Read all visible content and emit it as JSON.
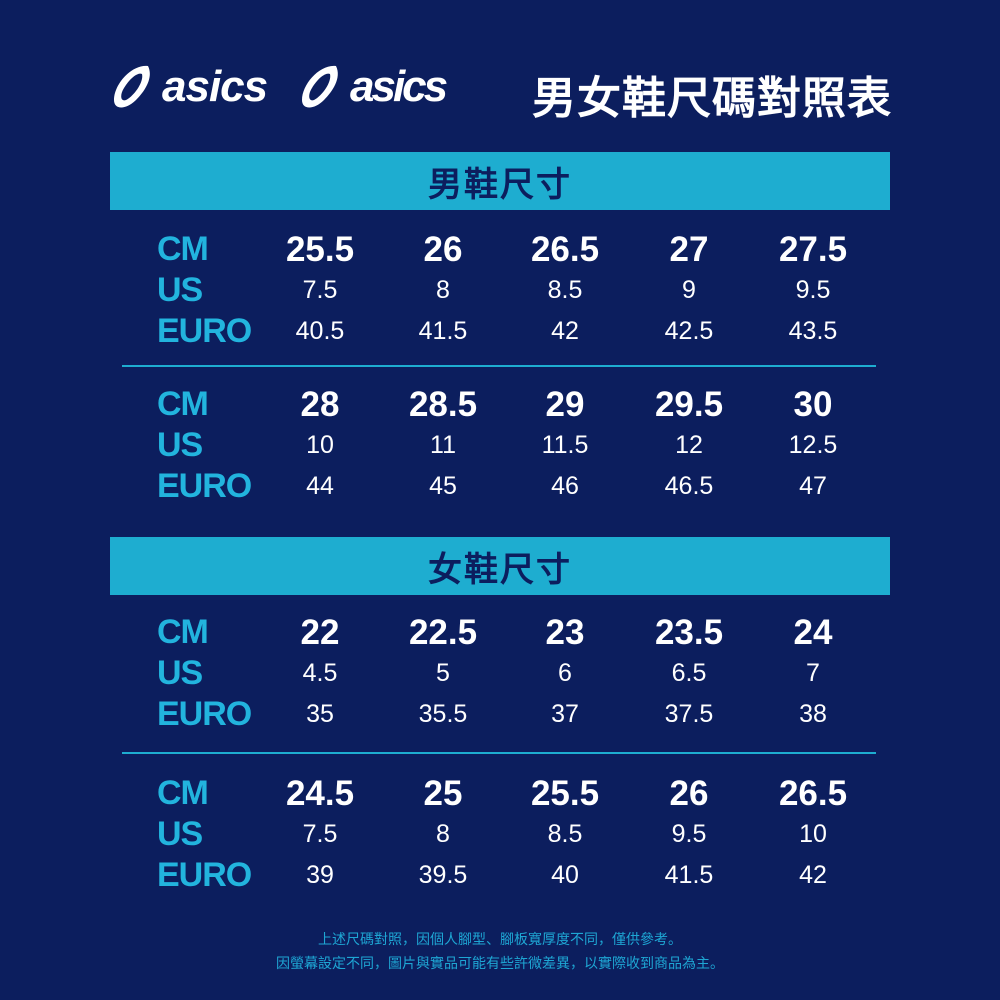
{
  "brand": {
    "logo1": "asics",
    "logo2": "asics"
  },
  "title": "男女鞋尺碼對照表",
  "colors": {
    "background": "#0c1e5e",
    "accent": "#1eadd0",
    "label": "#22b4de",
    "value": "#ffffff"
  },
  "men": {
    "heading": "男鞋尺寸",
    "blocks": [
      {
        "labels": [
          "CM",
          "US",
          "EURO"
        ],
        "cm": [
          "25.5",
          "26",
          "26.5",
          "27",
          "27.5"
        ],
        "us": [
          "7.5",
          "8",
          "8.5",
          "9",
          "9.5"
        ],
        "euro": [
          "40.5",
          "41.5",
          "42",
          "42.5",
          "43.5"
        ]
      },
      {
        "labels": [
          "CM",
          "US",
          "EURO"
        ],
        "cm": [
          "28",
          "28.5",
          "29",
          "29.5",
          "30"
        ],
        "us": [
          "10",
          "11",
          "11.5",
          "12",
          "12.5"
        ],
        "euro": [
          "44",
          "45",
          "46",
          "46.5",
          "47"
        ]
      }
    ]
  },
  "women": {
    "heading": "女鞋尺寸",
    "blocks": [
      {
        "labels": [
          "CM",
          "US",
          "EURO"
        ],
        "cm": [
          "22",
          "22.5",
          "23",
          "23.5",
          "24"
        ],
        "us": [
          "4.5",
          "5",
          "6",
          "6.5",
          "7"
        ],
        "euro": [
          "35",
          "35.5",
          "37",
          "37.5",
          "38"
        ]
      },
      {
        "labels": [
          "CM",
          "US",
          "EURO"
        ],
        "cm": [
          "24.5",
          "25",
          "25.5",
          "26",
          "26.5"
        ],
        "us": [
          "7.5",
          "8",
          "8.5",
          "9.5",
          "10"
        ],
        "euro": [
          "39",
          "39.5",
          "40",
          "41.5",
          "42"
        ]
      }
    ]
  },
  "footer": {
    "line1": "上述尺碼對照，因個人腳型、腳板寬厚度不同，僅供參考。",
    "line2": "因螢幕設定不同，圖片與實品可能有些許微差異，以實際收到商品為主。"
  }
}
